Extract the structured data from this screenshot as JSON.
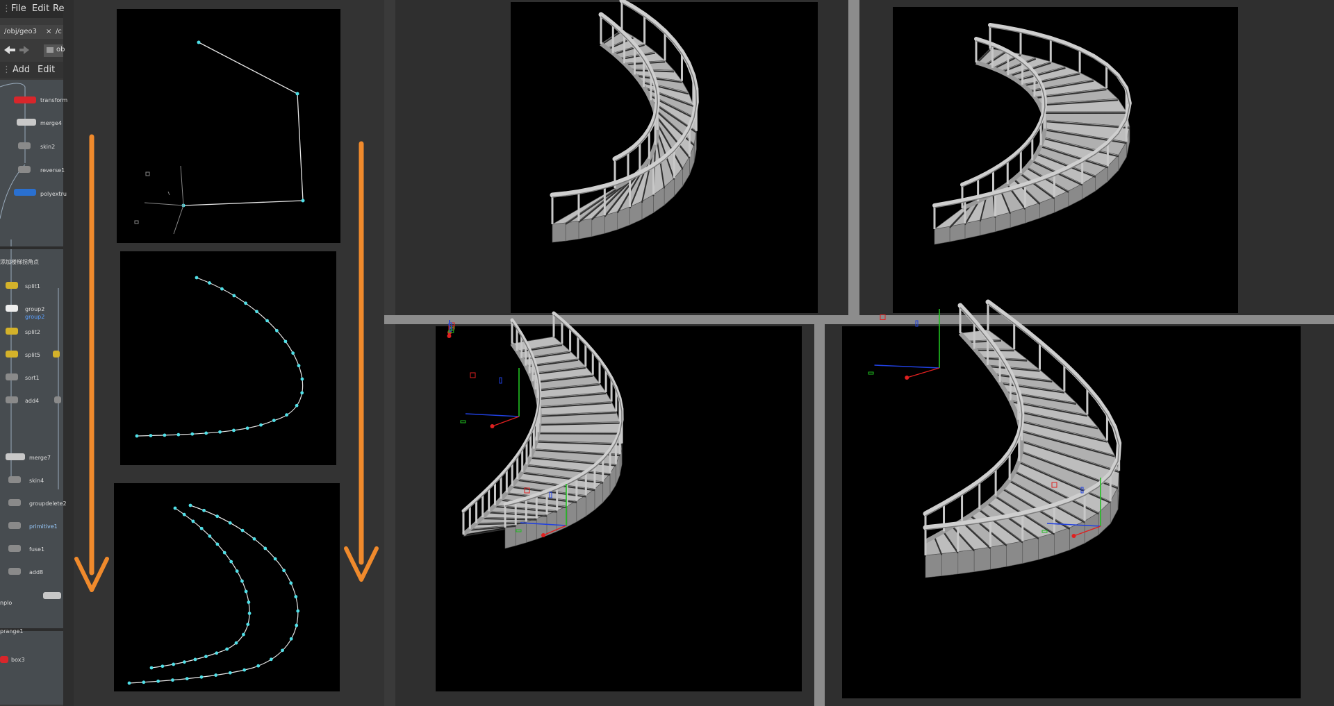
{
  "menu": {
    "file": "File",
    "edit": "Edit",
    "render_partial": "Re"
  },
  "path_tab": {
    "label": "/obj/geo3",
    "close": "×",
    "next": "/c"
  },
  "path_field": {
    "value": "ob"
  },
  "network_toolbar": {
    "add": "Add",
    "edit": "Edit"
  },
  "nodes_top": [
    "transform",
    "merge4",
    "skin2",
    "reverse1",
    "polyextru"
  ],
  "group_title": "添加楼梯拐角点",
  "nodes_middle": [
    "split1",
    "group2",
    "split2",
    "split5",
    "sort1",
    "add4",
    "merge7",
    "skin4",
    "groupdelete2",
    "primitive1",
    "fuse1",
    "add8"
  ],
  "group2_sublabel": "group2",
  "nodes_bottom_labels": {
    "apply": "nplo",
    "range": "prange1",
    "box": "box3"
  },
  "colors": {
    "arrow": "#f08a2c",
    "curve_point": "#4fe0e8",
    "handle_x": "#e02020",
    "handle_y": "#20c020",
    "handle_z": "#2040e0",
    "stair": "#b4b4b4"
  }
}
